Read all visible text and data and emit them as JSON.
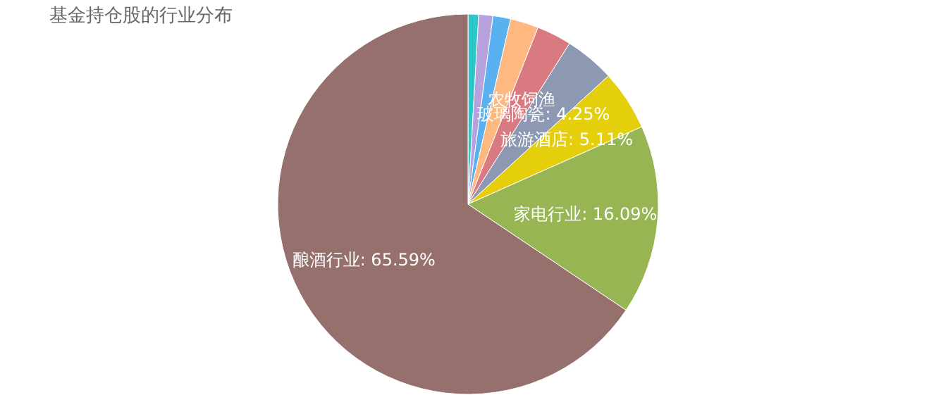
{
  "chart_data": {
    "type": "pie",
    "title": "基金持仓股的行业分布",
    "categories": [
      null,
      null,
      null,
      null,
      "农牧饲渔",
      "玻璃陶瓷",
      "旅游酒店",
      "家电行业",
      "酿酒行业"
    ],
    "values": [
      0.9,
      1.2,
      1.5,
      2.4,
      2.96,
      4.25,
      5.11,
      16.09,
      65.59
    ],
    "value_labels": [
      null,
      null,
      null,
      null,
      null,
      "4.25%",
      "5.11%",
      "16.09%",
      "65.59%"
    ],
    "colors": [
      "#2ec7c9",
      "#b6a2de",
      "#5ab1ef",
      "#ffb980",
      "#d87a80",
      "#8d98b3",
      "#e5cf0d",
      "#97b552",
      "#95706d"
    ],
    "legend": false
  }
}
